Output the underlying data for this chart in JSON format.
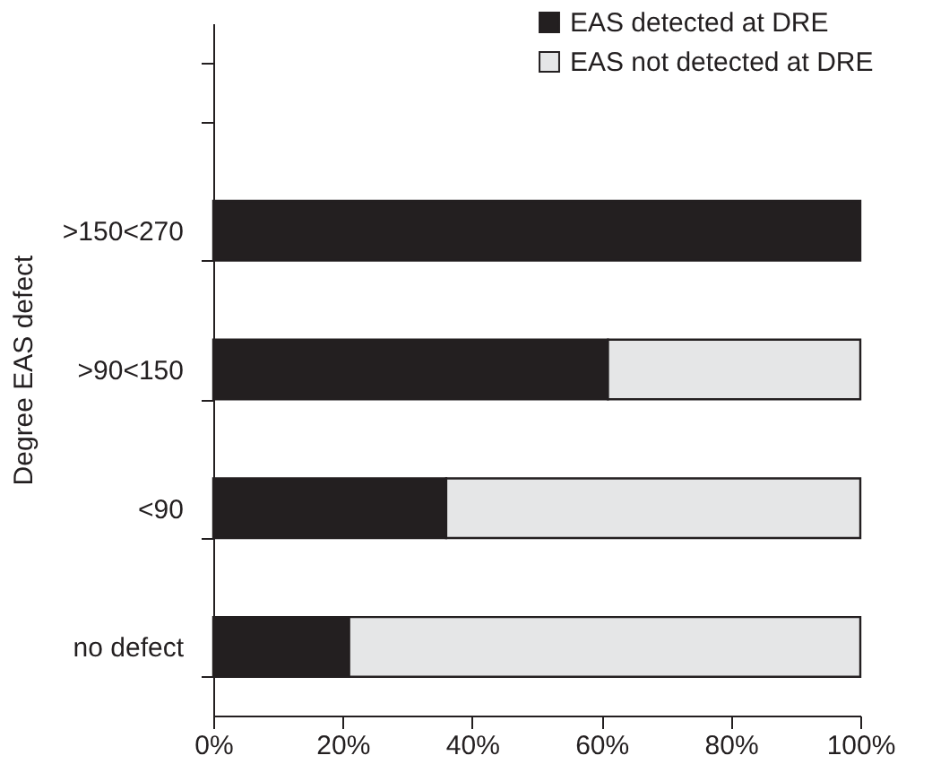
{
  "chart_data": {
    "type": "bar",
    "orientation": "horizontal",
    "stacked": true,
    "ylabel": "Degree EAS defect",
    "categories": [
      ">150<270",
      ">90<150",
      "<90",
      "no defect"
    ],
    "series": [
      {
        "name": "EAS detected at DRE",
        "color": "#231f20",
        "values": [
          100,
          61,
          36,
          21
        ]
      },
      {
        "name": "EAS not detected at DRE",
        "color": "#e5e6e7",
        "values": [
          null,
          39,
          64,
          79
        ]
      }
    ],
    "xlim": [
      0,
      100
    ],
    "xticks": [
      {
        "value": 0,
        "label": "0%"
      },
      {
        "value": 20,
        "label": "20%"
      },
      {
        "value": 40,
        "label": "40%"
      },
      {
        "value": 60,
        "label": "60%"
      },
      {
        "value": 80,
        "label": "80%"
      },
      {
        "value": 100,
        "label": "100%"
      }
    ],
    "grid": false,
    "legend": "top right"
  }
}
